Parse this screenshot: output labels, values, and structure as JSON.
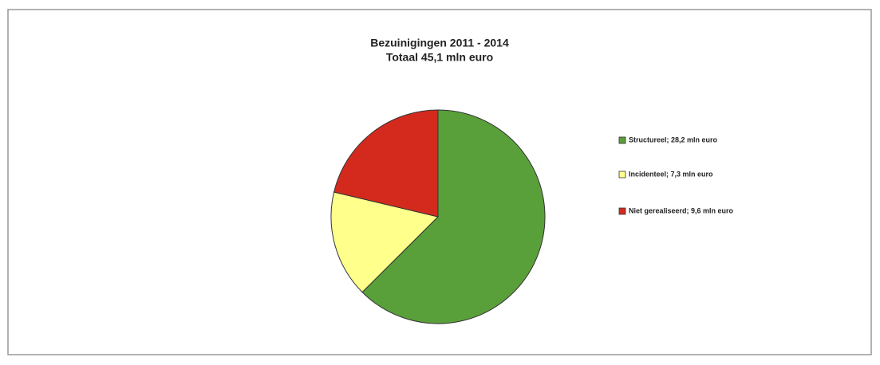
{
  "chart_data": {
    "type": "pie",
    "title": "Bezuinigingen 2011 - 2014",
    "subtitle": "Totaal 45,1 mln euro",
    "categories": [
      "Structureel; 28,2 mln euro",
      "Incidenteel; 7,3 mln euro",
      "Niet gerealiseerd; 9,6 mln euro"
    ],
    "values": [
      28.2,
      7.3,
      9.6
    ],
    "colors": [
      "#5aa03a",
      "#ffff8c",
      "#d42a1e"
    ],
    "legend": "right"
  }
}
